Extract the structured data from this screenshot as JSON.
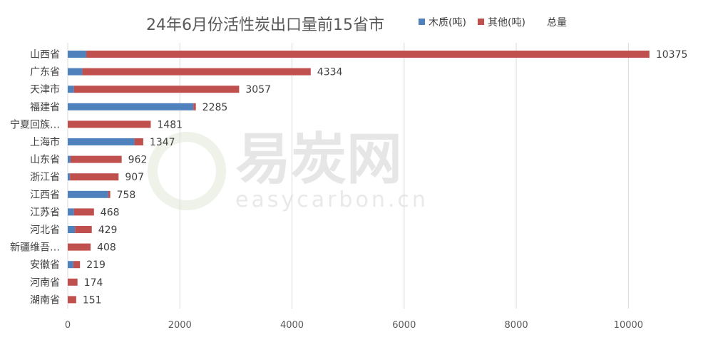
{
  "chart_data": {
    "type": "bar",
    "orientation": "horizontal",
    "stacked": true,
    "title": "24年6月份活性炭出口量前15省市",
    "categories": [
      "山西省",
      "广东省",
      "天津市",
      "福建省",
      "宁夏回族…",
      "上海市",
      "山东省",
      "浙江省",
      "江西省",
      "江苏省",
      "河北省",
      "新疆维吾…",
      "安徽省",
      "河南省",
      "湖南省"
    ],
    "series": [
      {
        "name": "木质(吨)",
        "color": "#4f81bd",
        "values": [
          330,
          260,
          110,
          2240,
          0,
          1190,
          50,
          40,
          720,
          110,
          130,
          0,
          100,
          0,
          0
        ]
      },
      {
        "name": "其他(吨)",
        "color": "#c0504d",
        "values": [
          10045,
          4074,
          2947,
          45,
          1481,
          157,
          912,
          867,
          38,
          358,
          299,
          408,
          119,
          174,
          151
        ]
      }
    ],
    "totals_label": "总量",
    "totals": [
      10375,
      4334,
      3057,
      2285,
      1481,
      1347,
      962,
      907,
      758,
      468,
      429,
      408,
      219,
      174,
      151
    ],
    "xlim": [
      0,
      11000
    ],
    "xticks": [
      0,
      2000,
      4000,
      6000,
      8000,
      10000
    ],
    "grid": true,
    "legend_position": "top-right"
  },
  "watermark": {
    "brand": "易炭网",
    "domain": "easycarbon.cn",
    "color": "#e6e6e6"
  }
}
